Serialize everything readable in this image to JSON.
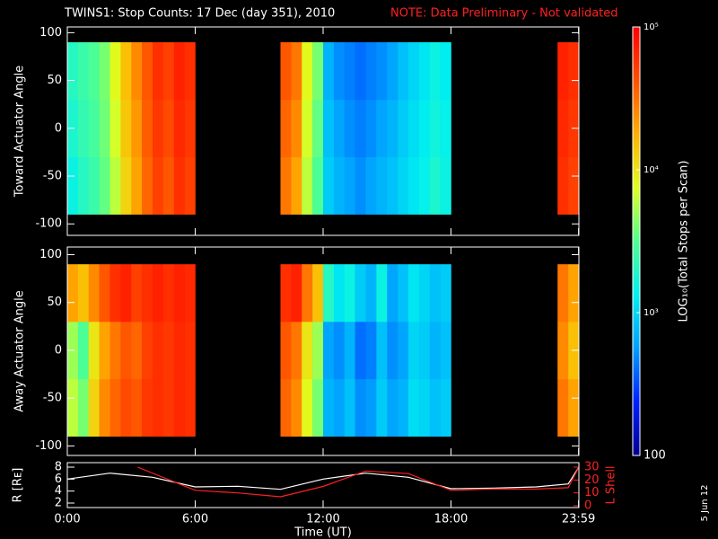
{
  "title": "TWINS1: Stop Counts: 17 Dec (day 351), 2010",
  "note": "NOTE: Data Preliminary - Not validated",
  "note_color": "#ff2020",
  "stamp": "5 Jun 12",
  "colorbar": {
    "label": "LOG₁₀(Total Stops per Scan)",
    "log": true,
    "lim": [
      100,
      100000
    ],
    "ticks": [
      100,
      {
        "value": 1000,
        "label": "10³"
      },
      {
        "value": 10000,
        "label": "10⁴"
      },
      {
        "value": 100000,
        "label": "10⁵"
      }
    ],
    "colormap": [
      "#000090",
      "#0020ff",
      "#00a0ff",
      "#00f0f0",
      "#50ff90",
      "#e0ff20",
      "#ffb000",
      "#ff5000",
      "#ff0000"
    ]
  },
  "chart_data": [
    {
      "type": "heatmap",
      "ylabel": "Toward Actuator Angle",
      "xlim": [
        0,
        24
      ],
      "ylim": [
        -112,
        106
      ],
      "yticks": [
        -100,
        -50,
        0,
        50,
        100
      ],
      "x_edges": [
        0,
        0.5,
        1,
        1.5,
        2,
        2.5,
        3,
        3.5,
        4,
        4.5,
        5,
        5.5,
        6,
        6.5,
        7,
        7.5,
        8,
        8.5,
        9,
        9.5,
        10,
        10.5,
        11,
        11.5,
        12,
        12.5,
        13,
        13.5,
        14,
        14.5,
        15,
        15.5,
        16,
        16.5,
        17,
        17.5,
        18,
        18.5,
        19,
        19.5,
        20,
        20.5,
        21,
        21.5,
        22,
        22.5,
        23,
        23.5,
        24
      ],
      "y_edges": [
        -90,
        -30,
        30,
        90
      ],
      "values": [
        [
          1500,
          2000,
          2500,
          3500,
          6000,
          12000,
          20000,
          35000,
          50000,
          40000,
          60000,
          50000,
          null,
          null,
          null,
          null,
          null,
          null,
          null,
          null,
          30000,
          20000,
          6000,
          3000,
          900,
          700,
          600,
          500,
          600,
          700,
          800,
          1000,
          1200,
          1400,
          1800,
          1500,
          null,
          null,
          null,
          null,
          null,
          null,
          null,
          null,
          null,
          null,
          60000,
          50000
        ],
        [
          1800,
          2300,
          2800,
          3800,
          7000,
          14000,
          22000,
          38000,
          55000,
          45000,
          65000,
          55000,
          null,
          null,
          null,
          null,
          null,
          null,
          null,
          null,
          35000,
          25000,
          7000,
          3500,
          800,
          600,
          500,
          450,
          500,
          600,
          700,
          900,
          1100,
          1300,
          1600,
          1400,
          null,
          null,
          null,
          null,
          null,
          null,
          null,
          null,
          null,
          null,
          65000,
          55000
        ],
        [
          2000,
          2500,
          3000,
          4000,
          8000,
          15000,
          25000,
          40000,
          60000,
          50000,
          70000,
          60000,
          null,
          null,
          null,
          null,
          null,
          null,
          null,
          null,
          40000,
          30000,
          8000,
          4000,
          700,
          500,
          450,
          400,
          450,
          500,
          600,
          800,
          1000,
          1200,
          1500,
          1300,
          null,
          null,
          null,
          null,
          null,
          null,
          null,
          null,
          null,
          null,
          70000,
          60000
        ]
      ]
    },
    {
      "type": "heatmap",
      "ylabel": "Away Actuator Angle",
      "xlim": [
        0,
        24
      ],
      "ylim": [
        -110,
        108
      ],
      "yticks": [
        -100,
        -50,
        0,
        50,
        100
      ],
      "x_edges": [
        0,
        0.5,
        1,
        1.5,
        2,
        2.5,
        3,
        3.5,
        4,
        4.5,
        5,
        5.5,
        6,
        6.5,
        7,
        7.5,
        8,
        8.5,
        9,
        9.5,
        10,
        10.5,
        11,
        11.5,
        12,
        12.5,
        13,
        13.5,
        14,
        14.5,
        15,
        15.5,
        16,
        16.5,
        17,
        17.5,
        18,
        18.5,
        19,
        19.5,
        20,
        20.5,
        21,
        21.5,
        22,
        22.5,
        23,
        23.5,
        24
      ],
      "y_edges": [
        -90,
        -30,
        30,
        90
      ],
      "values": [
        [
          6000,
          4000,
          12000,
          25000,
          35000,
          45000,
          40000,
          55000,
          60000,
          55000,
          65000,
          60000,
          null,
          null,
          null,
          null,
          null,
          null,
          null,
          null,
          35000,
          25000,
          8000,
          4000,
          700,
          600,
          800,
          500,
          550,
          900,
          600,
          700,
          1100,
          1000,
          800,
          900,
          null,
          null,
          null,
          null,
          null,
          null,
          null,
          null,
          null,
          null,
          30000,
          20000
        ],
        [
          5000,
          3000,
          10000,
          20000,
          30000,
          40000,
          35000,
          50000,
          60000,
          55000,
          65000,
          60000,
          null,
          null,
          null,
          null,
          null,
          null,
          null,
          null,
          40000,
          30000,
          10000,
          5000,
          600,
          500,
          700,
          400,
          450,
          800,
          500,
          600,
          1000,
          900,
          700,
          800,
          null,
          null,
          null,
          null,
          null,
          null,
          null,
          null,
          null,
          null,
          25000,
          15000
        ],
        [
          20000,
          15000,
          25000,
          40000,
          60000,
          70000,
          50000,
          60000,
          70000,
          60000,
          70000,
          65000,
          null,
          null,
          null,
          null,
          null,
          null,
          null,
          null,
          60000,
          70000,
          30000,
          15000,
          2000,
          1200,
          1500,
          900,
          700,
          1500,
          600,
          800,
          1200,
          1000,
          800,
          900,
          null,
          null,
          null,
          null,
          null,
          null,
          null,
          null,
          null,
          null,
          30000,
          20000
        ]
      ]
    },
    {
      "type": "line",
      "xlabel": "Time (UT)",
      "ylabel": "R [Rᴇ]",
      "y2label": "L Shell",
      "y2color": "#ff2020",
      "xlim": [
        0,
        24
      ],
      "ylim": [
        1.25,
        8.75
      ],
      "y2lim": [
        -1.4,
        33.5
      ],
      "xticks": [
        {
          "value": 0,
          "label": "0:00"
        },
        {
          "value": 6,
          "label": "6:00"
        },
        {
          "value": 12,
          "label": "12:00"
        },
        {
          "value": 18,
          "label": "18:00"
        },
        {
          "value": 23.983,
          "label": "23:59"
        }
      ],
      "yticks": [
        2,
        4,
        6,
        8
      ],
      "y2ticks": [
        0,
        10,
        20,
        30
      ],
      "series": [
        {
          "color": "#ffffff",
          "x": [
            0,
            2,
            4,
            6,
            8,
            10,
            12,
            14,
            16,
            18,
            20,
            22,
            23.5,
            24
          ],
          "values": [
            6,
            7,
            6.3,
            4.7,
            4.8,
            4.3,
            6,
            7,
            6.3,
            4.4,
            4.5,
            4.7,
            5.2,
            8
          ]
        },
        {
          "color": "#ff2020",
          "axis": "y2",
          "x": [
            3.3,
            6,
            8,
            10,
            12,
            14,
            16,
            18,
            20,
            22,
            23.5,
            24
          ],
          "values": [
            30,
            12,
            10,
            7,
            15,
            27,
            25,
            12,
            13,
            13,
            14,
            30
          ]
        }
      ]
    }
  ]
}
